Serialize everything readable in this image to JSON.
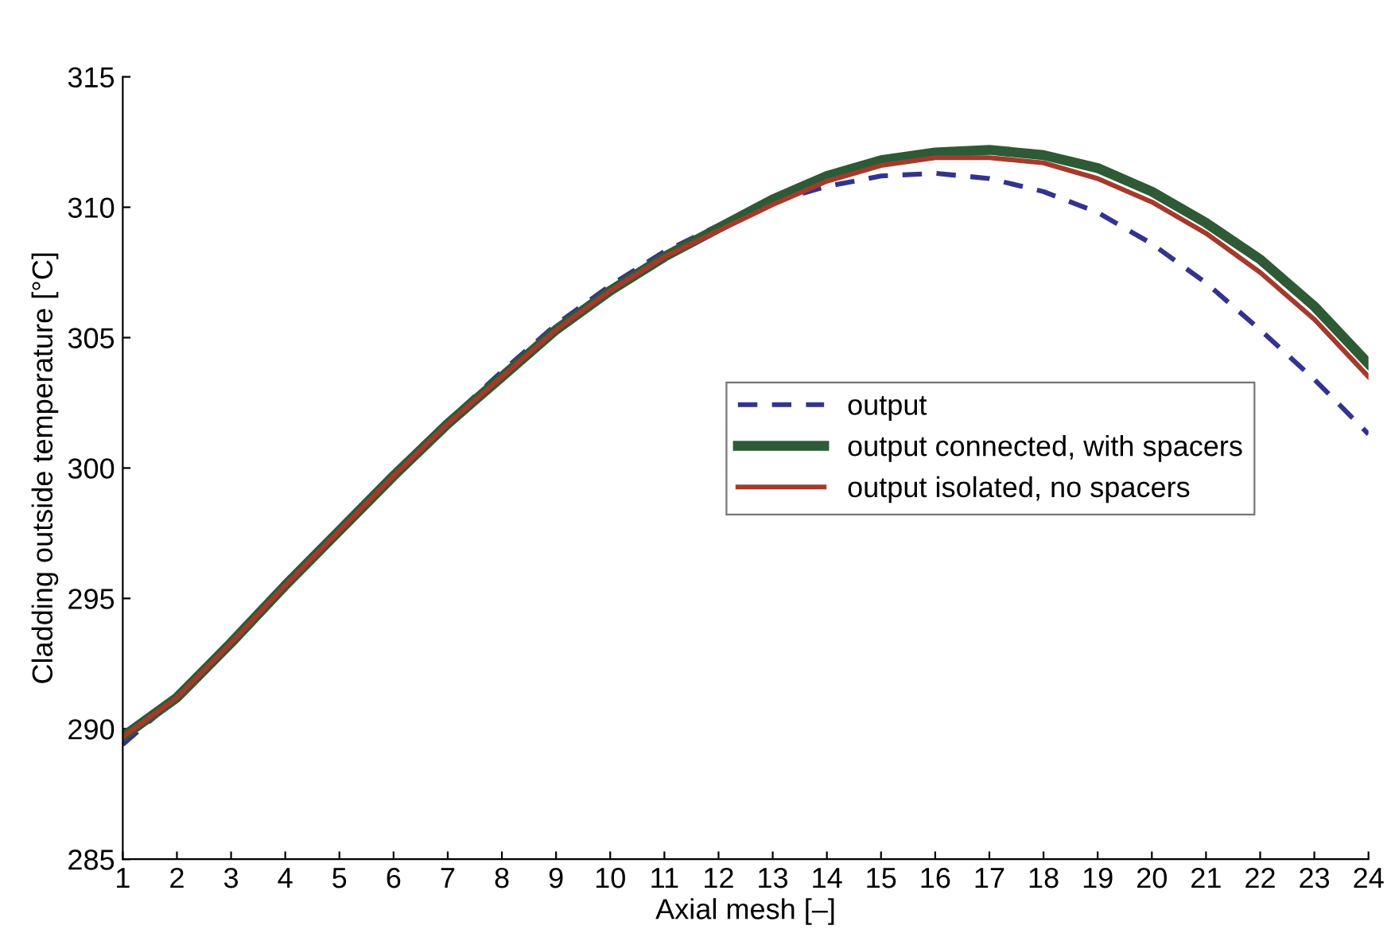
{
  "chart_data": {
    "type": "line",
    "xlabel": "Axial mesh [–]",
    "ylabel": "Cladding outside temperature [°C]",
    "x": [
      1,
      2,
      3,
      4,
      5,
      6,
      7,
      8,
      9,
      10,
      11,
      12,
      13,
      14,
      15,
      16,
      17,
      18,
      19,
      20,
      21,
      22,
      23,
      24
    ],
    "xlim": [
      1,
      24
    ],
    "xticks": [
      1,
      2,
      3,
      4,
      5,
      6,
      7,
      8,
      9,
      10,
      11,
      12,
      13,
      14,
      15,
      16,
      17,
      18,
      19,
      20,
      21,
      22,
      23,
      24
    ],
    "ylim": [
      285,
      315
    ],
    "yticks": [
      285,
      290,
      295,
      300,
      305,
      310,
      315
    ],
    "grid": false,
    "legend": "center right",
    "marker": "none",
    "series": [
      {
        "name": "output",
        "color": "#33338f",
        "line_style": "dashed",
        "values": [
          289.4,
          291.2,
          293.4,
          295.6,
          297.7,
          299.8,
          301.8,
          303.7,
          305.5,
          307.0,
          308.3,
          309.3,
          310.2,
          310.8,
          311.2,
          311.3,
          311.1,
          310.6,
          309.8,
          308.6,
          307.1,
          305.3,
          303.4,
          301.3
        ]
      },
      {
        "name": "output connected, with spacers",
        "color": "#2e5a36",
        "line_style": "solid",
        "values": [
          289.7,
          291.2,
          293.3,
          295.5,
          297.6,
          299.7,
          301.7,
          303.5,
          305.3,
          306.8,
          308.1,
          309.2,
          310.3,
          311.2,
          311.8,
          312.1,
          312.2,
          312.0,
          311.5,
          310.6,
          309.4,
          308.0,
          306.2,
          304.0
        ]
      },
      {
        "name": "output isolated, no spacers",
        "color": "#a43a2c",
        "line_style": "solid",
        "values": [
          289.7,
          291.2,
          293.3,
          295.5,
          297.6,
          299.7,
          301.7,
          303.5,
          305.3,
          306.8,
          308.1,
          309.1,
          310.1,
          311.0,
          311.6,
          311.9,
          311.9,
          311.7,
          311.1,
          310.2,
          309.0,
          307.5,
          305.7,
          303.5
        ]
      }
    ]
  }
}
